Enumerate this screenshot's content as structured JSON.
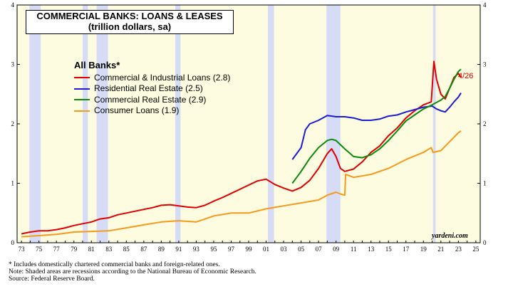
{
  "title": "COMMERCIAL BANKS: LOANS & LEASES",
  "subtitle": "(trillion dollars, sa)",
  "legend_header": "All Banks*",
  "brand": "yardeni.com",
  "annotation": "4/26",
  "footnotes": [
    "*  Includes domestically chartered commercial banks and foreign-related ones.",
    "Note: Shaded areas are recessions according to the National Bureau of Economic Research.",
    "Source: Federal Reserve Board."
  ],
  "chart_data": {
    "type": "line",
    "xlim": [
      1972.5,
      2025.5
    ],
    "ylim": [
      0,
      4
    ],
    "y_ticks": [
      0,
      1,
      2,
      3,
      4
    ],
    "x_tick_labels": [
      "73",
      "75",
      "77",
      "79",
      "81",
      "83",
      "85",
      "87",
      "89",
      "91",
      "93",
      "95",
      "97",
      "99",
      "01",
      "03",
      "05",
      "07",
      "09",
      "11",
      "13",
      "15",
      "17",
      "19",
      "21",
      "23",
      "25"
    ],
    "grid": false,
    "legend_position": "top-left",
    "colors": {
      "background": "#fdfbe0",
      "recession": "#d6dcf5"
    },
    "recessions": [
      [
        1973.9,
        1975.2
      ],
      [
        1980.0,
        1980.6
      ],
      [
        1981.6,
        1982.9
      ],
      [
        1990.6,
        1991.2
      ],
      [
        2001.2,
        2001.9
      ],
      [
        2007.9,
        2009.5
      ],
      [
        2020.1,
        2020.4
      ]
    ],
    "series": [
      {
        "name": "Commercial & Industrial Loans (2.8)",
        "color": "#e00000",
        "x": [
          1973,
          1974,
          1975,
          1976,
          1977,
          1978,
          1979,
          1980,
          1981,
          1982,
          1983,
          1984,
          1985,
          1986,
          1987,
          1988,
          1989,
          1990,
          1991,
          1992,
          1993,
          1994,
          1995,
          1996,
          1997,
          1998,
          1999,
          2000,
          2001,
          2002,
          2003,
          2004,
          2005,
          2006,
          2007,
          2008,
          2008.5,
          2009,
          2009.5,
          2010,
          2011,
          2012,
          2013,
          2014,
          2015,
          2016,
          2017,
          2018,
          2019,
          2019.9,
          2020.2,
          2020.5,
          2021,
          2021.5,
          2022,
          2022.5,
          2023,
          2023.3
        ],
        "y": [
          0.15,
          0.18,
          0.2,
          0.2,
          0.22,
          0.25,
          0.29,
          0.32,
          0.35,
          0.4,
          0.42,
          0.47,
          0.5,
          0.53,
          0.56,
          0.59,
          0.63,
          0.64,
          0.62,
          0.6,
          0.59,
          0.63,
          0.7,
          0.76,
          0.83,
          0.9,
          0.97,
          1.04,
          1.07,
          0.98,
          0.92,
          0.87,
          0.93,
          1.05,
          1.25,
          1.5,
          1.58,
          1.45,
          1.25,
          1.2,
          1.24,
          1.36,
          1.52,
          1.63,
          1.8,
          1.93,
          2.1,
          2.22,
          2.32,
          2.37,
          3.05,
          2.75,
          2.5,
          2.42,
          2.6,
          2.78,
          2.85,
          2.78
        ]
      },
      {
        "name": "Residential Real Estate (2.5)",
        "color": "#1c1cd6",
        "x": [
          2004,
          2005,
          2005.5,
          2006,
          2007,
          2008,
          2009,
          2010,
          2011,
          2012,
          2013,
          2014,
          2015,
          2016,
          2017,
          2018,
          2019,
          2020,
          2020.5,
          2021,
          2021.5,
          2022,
          2022.5,
          2023,
          2023.3
        ],
        "y": [
          1.4,
          1.6,
          1.9,
          2.0,
          2.06,
          2.14,
          2.12,
          2.12,
          2.1,
          2.06,
          2.06,
          2.08,
          2.13,
          2.15,
          2.2,
          2.24,
          2.28,
          2.3,
          2.25,
          2.22,
          2.2,
          2.28,
          2.37,
          2.45,
          2.52
        ]
      },
      {
        "name": "Commercial Real Estate (2.9)",
        "color": "#0b8a0b",
        "x": [
          2004,
          2005,
          2006,
          2007,
          2008,
          2008.5,
          2009,
          2010,
          2011,
          2012,
          2013,
          2014,
          2015,
          2016,
          2017,
          2018,
          2019,
          2020,
          2020.5,
          2021,
          2021.5,
          2022,
          2022.5,
          2023,
          2023.3
        ],
        "y": [
          1.0,
          1.2,
          1.42,
          1.6,
          1.72,
          1.74,
          1.72,
          1.58,
          1.45,
          1.43,
          1.48,
          1.58,
          1.72,
          1.88,
          2.05,
          2.15,
          2.25,
          2.32,
          2.36,
          2.4,
          2.46,
          2.6,
          2.75,
          2.88,
          2.92
        ]
      },
      {
        "name": "Consumer Loans (1.9)",
        "color": "#f59a1c",
        "x": [
          1973,
          1975,
          1977,
          1979,
          1981,
          1983,
          1985,
          1987,
          1989,
          1991,
          1993,
          1995,
          1997,
          1999,
          2001,
          2003,
          2005,
          2007,
          2008,
          2009,
          2009.5,
          2010,
          2010.1,
          2011,
          2013,
          2015,
          2017,
          2019,
          2019.9,
          2020.1,
          2021,
          2022,
          2023,
          2023.3
        ],
        "y": [
          0.1,
          0.12,
          0.14,
          0.18,
          0.19,
          0.2,
          0.25,
          0.3,
          0.35,
          0.37,
          0.35,
          0.45,
          0.5,
          0.5,
          0.57,
          0.62,
          0.67,
          0.72,
          0.8,
          0.85,
          0.82,
          0.8,
          1.15,
          1.1,
          1.15,
          1.25,
          1.4,
          1.52,
          1.6,
          1.52,
          1.55,
          1.7,
          1.85,
          1.88
        ]
      }
    ]
  }
}
